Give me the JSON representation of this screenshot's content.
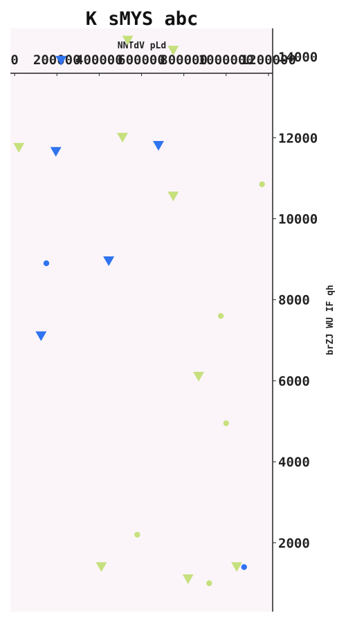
{
  "chart_data": {
    "type": "scatter",
    "title": "K sMYS abc",
    "xlabel": "NNTdV pLd",
    "ylabel": "brZJ WU IF qh",
    "x_axis_position": "top",
    "y_axis_position": "right",
    "xlim": [
      -20000,
      1220000
    ],
    "ylim": [
      300,
      14700
    ],
    "xticks": [
      0,
      200000,
      400000,
      600000,
      800000,
      1000000,
      1200000
    ],
    "yticks": [
      2000,
      4000,
      6000,
      8000,
      10000,
      12000,
      14000
    ],
    "grid": false,
    "colors": {
      "background": "#fbf5f9",
      "blue": "#2f73f0",
      "green": "#c6e07e",
      "axis": "#222222"
    },
    "series": [
      {
        "color": "#c6e07e",
        "marker": "triangle-down",
        "points": [
          [
            535000,
            14400
          ],
          [
            750000,
            14150
          ],
          [
            20000,
            11750
          ],
          [
            510000,
            12000
          ],
          [
            750000,
            10550
          ],
          [
            870000,
            6100
          ],
          [
            410000,
            1400
          ],
          [
            820000,
            1100
          ],
          [
            1050000,
            1400
          ]
        ]
      },
      {
        "color": "#2f73f0",
        "marker": "triangle-down",
        "points": [
          [
            220000,
            13900
          ],
          [
            195000,
            11650
          ],
          [
            680000,
            11800
          ],
          [
            445000,
            8950
          ],
          [
            125000,
            7100
          ]
        ]
      },
      {
        "color": "#c6e07e",
        "marker": "circle",
        "points": [
          [
            1170000,
            10850
          ],
          [
            975000,
            7600
          ],
          [
            1000000,
            4950
          ],
          [
            580000,
            2200
          ],
          [
            920000,
            1000
          ]
        ]
      },
      {
        "color": "#2f73f0",
        "marker": "circle",
        "points": [
          [
            150000,
            8900
          ],
          [
            1085000,
            1400
          ]
        ]
      }
    ]
  }
}
